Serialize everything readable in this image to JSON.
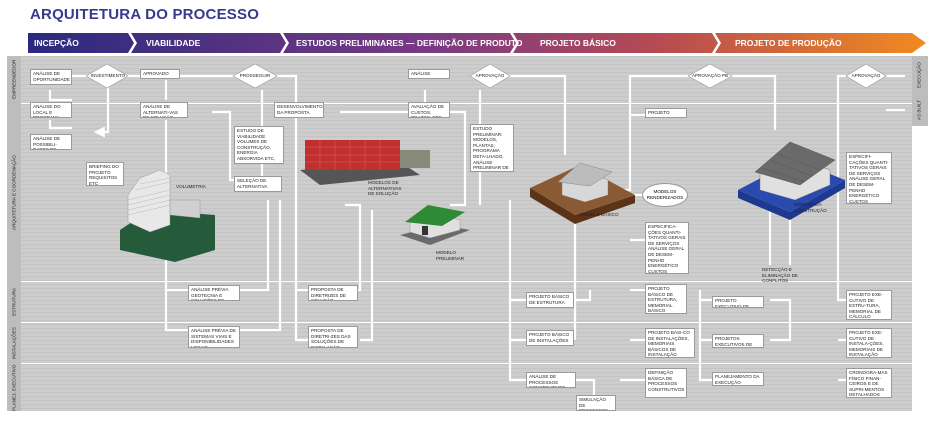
{
  "title": "ARQUITETURA DO PROCESSO",
  "phases": [
    "INCEPÇÃO",
    "VIABILIDADE",
    "ESTUDOS PRELIMINARES — DEFINIÇÃO DE PRODUTO",
    "PROJETO BÁSICO",
    "PROJETO DE PRODUÇÃO"
  ],
  "lanes": [
    "EMPREENDEDOR",
    "ARQUITETURA E COORDENAÇÃO",
    "ESTRUTURA",
    "INSTALAÇÕES",
    "PLANEJ. EXECUTIVO"
  ],
  "side_labels": [
    "EXECUÇÃO",
    "AS BUILT"
  ],
  "nodes": {
    "n1": "ANÁLISE DE OPORTUNIDADE",
    "n2": "ANÁLISE DO LOCAL E PROGRAMA",
    "n3": "ANÁLISE DE POSSIBILI-DADES DE SOLUÇÃO",
    "n4": "BRIEFING DO PROJETO REQUISITOS ETC",
    "d1": "INVESTIMENTO",
    "n5": "APROVADO",
    "n6": "ANÁLISE DE ALTERNATI-VAS DE SOLUÇÃO",
    "c1": "VOLUMETRIA",
    "d2": "PROSSEGUIR",
    "n7": "ESTUDO DE VIABILIDADE VOLUMES DE CONSTRUÇÃO, ENERGIA ABSORVIDA ETC, PROGRAMA DO PROJETO",
    "n8": "SELEÇÃO DE ALTERNATIVA",
    "n9": "DESENVOLVIMENTO DA PROPOSTA",
    "n10": "ANÁLISE NEGOCIAL",
    "n11": "AVALIAÇÃO DE CUSTOS, PRAZOS, ETC",
    "c2": "MODELOS DE ALTERNATIVAS DE SOLUÇÃO",
    "c3": "MODELO PRELIMINAR",
    "d3": "APROVAÇÃO",
    "n12": "ESTUDO PRELIMINAR: MODELOS, PLANTAS, PROGRAMA DETA-LHADO, ANÁLISE PRELIMINAR DE DESEMPENHO",
    "n13": "ANÁLISE PRÉVIA GEOTECNIA E SOLUÇÕES DE ESTRUTURA",
    "n14": "ANÁLISE PRÉVIA DE SISTEMAS VIAIS E DISPONIBILIDADES LOCAIS",
    "n15": "PROPOSTA DE DIRETRIZES DE SOLUÇÃO ESTRUTURAL",
    "n16": "PROPOSTA DE DIRETRI-ZES DAS SOLUÇÕES DE INSTALAÇÃO",
    "c4": "MODELO BÁSICO",
    "n17": "PROJETO BÁSICO DE ESTRUTURA",
    "n18": "PROJETO BÁSICO DE INSTALAÇÕES",
    "n19": "ANÁLISE DE PROCESSOS CONSTRUTIVOS",
    "n20": "SIMULAÇÃO DE PROCESSOS",
    "d4": "APROVAÇÃO PB",
    "n21": "PROJETO LEGAL",
    "e1": "MODELOS RENDERIZADOS",
    "n22": "ESPECIFICA-ÇÕES QUANTI-TATIVOS GERAIS DE SERVIÇOS ANÁLISE GERAL DE DESEM-PENHO ENERGÉTICO CUSTOS ESTIMADOS",
    "n23": "PROJETO BÁSICO DE ESTRUTURA, MEMORIAL BÁSICO",
    "n24": "PROJETO BÁSI-CO DE INSTALAÇÕES, MEMORIAIS BÁSICOS DE INSTALAÇÃO",
    "n25": "DEFINIÇÃO BÁSICA DE PROCESSOS CONSTRUTIVOS",
    "c5": "MODELO DA CONSTRUÇÃO",
    "n26": "DETECÇÃO E ELIMINAÇÃO DE CONFLITOS",
    "n27": "PROJETO EXECUTIVO DE ESTRUTURA",
    "n28": "PROJETOS EXECUTIVOS DE INSTALAÇÃO",
    "n29": "PLANEJAMENTO DA EXECUÇÃO",
    "d5": "APROVAÇÃO",
    "n30": "ESPECIFI-CAÇÕES QUANTI-TATIVOS GERAIS DE SERVIÇOS ANÁLISE GERAL DE DESEM-PENHO ENERGÉTICO CUSTOS ESTIMADOS",
    "n31": "PROJETO EXE-CUTIVO DE ESTRU-TURA, MEMORIAL DE CÁLCULO COMPLETO",
    "n32": "PROJETO EXE-CUTIVO DE INSTALA-ÇÕES, MEMORIAIS DE INSTALAÇÃO",
    "n33": "CRONOGRA-MAS FÍSICO FINAN-CEIROS E DE SUPRI-MENTOS DETALHADOS"
  },
  "colors": {
    "arrow_start": "#2a2a7e",
    "arrow_mid": "#8a3a7e",
    "arrow_end": "#f08a20",
    "lane_bg": "#cfcfcf",
    "connector": "#ffffff",
    "title": "#3a3a8c",
    "roof_green": "#2e8a35",
    "facade_red": "#c0302e",
    "earth": "#7a4a2a",
    "blue_base": "#2a4ab0"
  }
}
